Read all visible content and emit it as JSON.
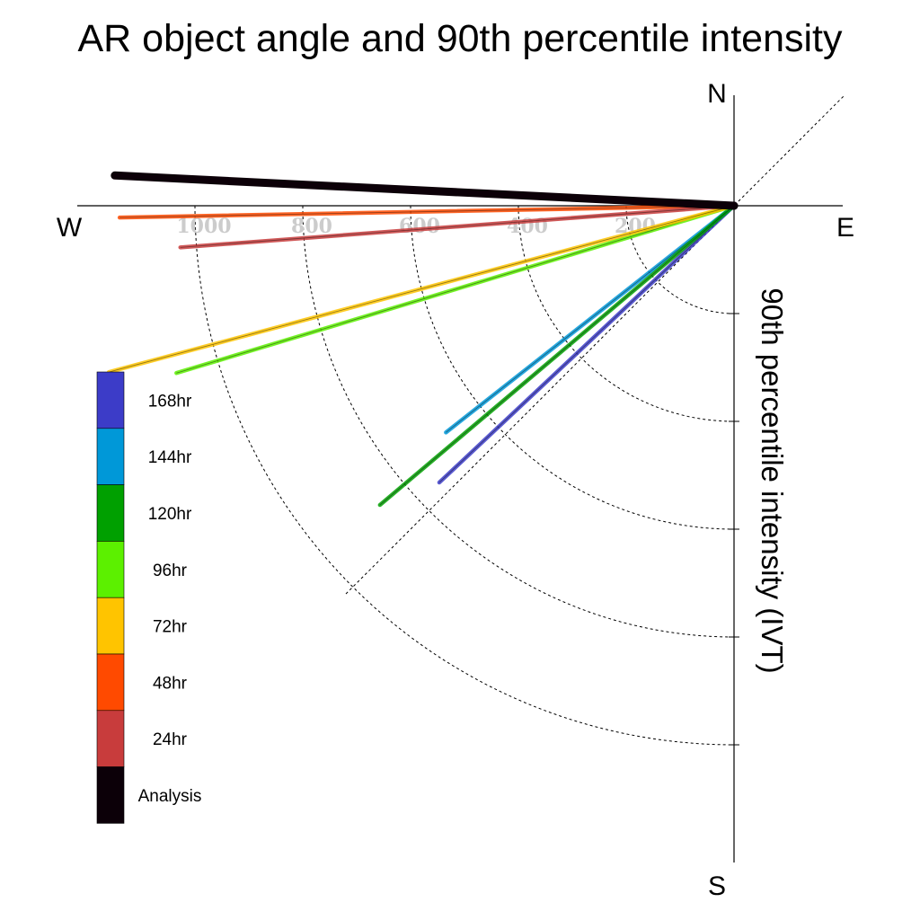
{
  "chart_data": {
    "type": "line",
    "title": "AR object angle and 90th percentile intensity",
    "ylabel": "90th percentile intensity (IVT)",
    "compass": {
      "north": "N",
      "south": "S",
      "east": "E",
      "west": "W"
    },
    "rticks": [
      200,
      400,
      600,
      800,
      1000
    ],
    "rlabels": [
      "200",
      "400",
      "600",
      "800",
      "1000"
    ],
    "rmax": 1200,
    "series": [
      {
        "name": "Analysis",
        "color": "#0c0008",
        "bearing": 272.8,
        "value": 1150
      },
      {
        "name": "24hr",
        "color": "#c83c3c",
        "bearing": 265.7,
        "value": 1030
      },
      {
        "name": "48hr",
        "color": "#ff4a00",
        "bearing": 268.9,
        "value": 1140
      },
      {
        "name": "72hr",
        "color": "#ffc400",
        "bearing": 255.1,
        "value": 1200
      },
      {
        "name": "96hr",
        "color": "#5cf000",
        "bearing": 253.3,
        "value": 1080
      },
      {
        "name": "120hr",
        "color": "#00a000",
        "bearing": 229.8,
        "value": 860
      },
      {
        "name": "144hr",
        "color": "#0098d8",
        "bearing": 231.8,
        "value": 680
      },
      {
        "name": "168hr",
        "color": "#3c3cc8",
        "bearing": 226.8,
        "value": 750
      }
    ],
    "legend": [
      "168hr",
      "144hr",
      "120hr",
      "96hr",
      "72hr",
      "48hr",
      "24hr",
      "Analysis"
    ],
    "grid": true
  }
}
